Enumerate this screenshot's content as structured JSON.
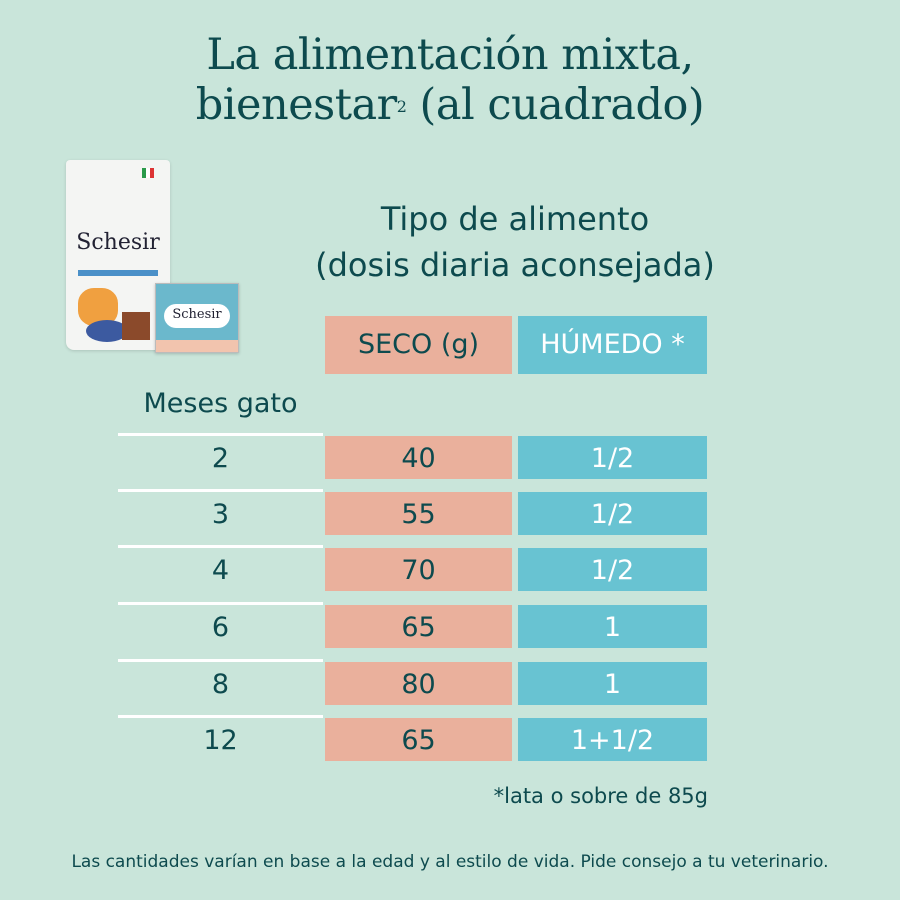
{
  "title": {
    "line1": "La alimentación mixta,",
    "line2_a": "bienestar",
    "line2_sup": "2",
    "line2_b": " (al cuadrado)"
  },
  "subtitle": {
    "line1": "Tipo de alimento",
    "line2": "(dosis diaria aconsejada)"
  },
  "product": {
    "bag_logo": "Schesir",
    "can_logo": "Schesir"
  },
  "table": {
    "row_header": "Meses gato",
    "columns": [
      "SECO (g)",
      "HÚMEDO *"
    ],
    "rows": [
      {
        "meses": "2",
        "seco": "40",
        "humedo": "1/2"
      },
      {
        "meses": "3",
        "seco": "55",
        "humedo": "1/2"
      },
      {
        "meses": "4",
        "seco": "70",
        "humedo": "1/2"
      },
      {
        "meses": "6",
        "seco": "65",
        "humedo": "1"
      },
      {
        "meses": "8",
        "seco": "80",
        "humedo": "1"
      },
      {
        "meses": "12",
        "seco": "65",
        "humedo": "1+1/2"
      }
    ]
  },
  "note": "*lata o sobre de 85g",
  "footer": "Las cantidades varían en base a la edad y al estilo de vida. Pide consejo a tu veterinario.",
  "colors": {
    "background": "#c9e5da",
    "text": "#0d4a4e",
    "seco": "#eab09c",
    "humedo": "#68c3d2"
  }
}
